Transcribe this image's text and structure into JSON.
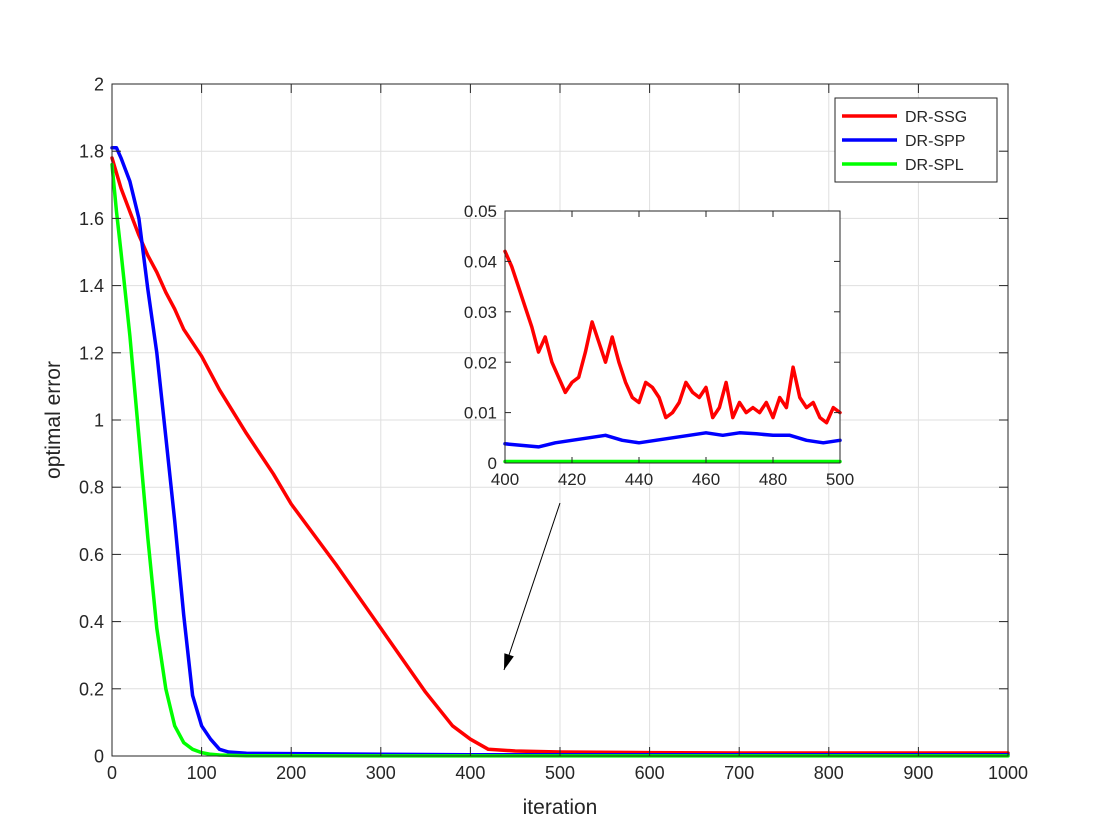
{
  "chart_data": [
    {
      "type": "line",
      "xlabel": "iteration",
      "ylabel": "optimal error",
      "xlim": [
        0,
        1000
      ],
      "ylim": [
        0,
        2
      ],
      "xticks": [
        0,
        100,
        200,
        300,
        400,
        500,
        600,
        700,
        800,
        900,
        1000
      ],
      "yticks": [
        0,
        0.2,
        0.4,
        0.6,
        0.8,
        1,
        1.2,
        1.4,
        1.6,
        1.8,
        2
      ],
      "xtick_labels": [
        "0",
        "100",
        "200",
        "300",
        "400",
        "500",
        "600",
        "700",
        "800",
        "900",
        "1000"
      ],
      "ytick_labels": [
        "0",
        "0.2",
        "0.4",
        "0.6",
        "0.8",
        "1",
        "1.2",
        "1.4",
        "1.6",
        "1.8",
        "2"
      ],
      "grid": true,
      "legend_position": "top-right",
      "series": [
        {
          "name": "DR-SSG",
          "color": "#ff0000",
          "x": [
            0,
            10,
            20,
            30,
            40,
            50,
            60,
            70,
            80,
            100,
            120,
            150,
            180,
            200,
            250,
            300,
            350,
            380,
            400,
            420,
            450,
            500,
            600,
            700,
            800,
            900,
            1000
          ],
          "y": [
            1.78,
            1.69,
            1.62,
            1.55,
            1.49,
            1.44,
            1.38,
            1.33,
            1.27,
            1.19,
            1.09,
            0.96,
            0.84,
            0.75,
            0.57,
            0.38,
            0.19,
            0.09,
            0.05,
            0.02,
            0.015,
            0.012,
            0.01,
            0.009,
            0.009,
            0.009,
            0.009
          ]
        },
        {
          "name": "DR-SPP",
          "color": "#0000ff",
          "x": [
            0,
            5,
            10,
            20,
            30,
            40,
            50,
            60,
            70,
            80,
            90,
            100,
            110,
            120,
            130,
            140,
            150,
            200,
            300,
            400,
            500,
            600,
            700,
            800,
            900,
            1000
          ],
          "y": [
            1.81,
            1.81,
            1.78,
            1.71,
            1.6,
            1.39,
            1.2,
            0.95,
            0.7,
            0.42,
            0.18,
            0.09,
            0.05,
            0.02,
            0.012,
            0.01,
            0.008,
            0.007,
            0.005,
            0.004,
            0.004,
            0.004,
            0.004,
            0.004,
            0.004,
            0.004
          ]
        },
        {
          "name": "DR-SPL",
          "color": "#00ff00",
          "x": [
            0,
            5,
            10,
            20,
            30,
            40,
            50,
            60,
            70,
            80,
            90,
            100,
            110,
            120,
            150,
            200,
            300,
            400,
            500,
            600,
            700,
            800,
            900,
            1000
          ],
          "y": [
            1.76,
            1.62,
            1.5,
            1.25,
            0.95,
            0.65,
            0.38,
            0.2,
            0.09,
            0.04,
            0.02,
            0.01,
            0.005,
            0.003,
            0.001,
            0.0005,
            0.0003,
            0.0003,
            0.0003,
            0.0003,
            0.0003,
            0.0003,
            0.0003,
            0.0003
          ]
        }
      ]
    },
    {
      "type": "line",
      "xlim": [
        400,
        500
      ],
      "ylim": [
        0,
        0.05
      ],
      "xticks": [
        400,
        420,
        440,
        460,
        480,
        500
      ],
      "yticks": [
        0,
        0.01,
        0.02,
        0.03,
        0.04,
        0.05
      ],
      "xtick_labels": [
        "400",
        "420",
        "440",
        "460",
        "480",
        "500"
      ],
      "ytick_labels": [
        "0",
        "0.01",
        "0.02",
        "0.03",
        "0.04",
        "0.05"
      ],
      "grid": false,
      "series": [
        {
          "color": "#ff0000",
          "x": [
            400,
            402,
            404,
            406,
            408,
            410,
            412,
            414,
            416,
            418,
            420,
            422,
            424,
            426,
            428,
            430,
            432,
            434,
            436,
            438,
            440,
            442,
            444,
            446,
            448,
            450,
            452,
            454,
            456,
            458,
            460,
            462,
            464,
            466,
            468,
            470,
            472,
            474,
            476,
            478,
            480,
            482,
            484,
            486,
            488,
            490,
            492,
            494,
            496,
            498,
            500
          ],
          "y": [
            0.042,
            0.039,
            0.035,
            0.031,
            0.027,
            0.022,
            0.025,
            0.02,
            0.017,
            0.014,
            0.016,
            0.017,
            0.022,
            0.028,
            0.024,
            0.02,
            0.025,
            0.02,
            0.016,
            0.013,
            0.012,
            0.016,
            0.015,
            0.013,
            0.009,
            0.01,
            0.012,
            0.016,
            0.014,
            0.013,
            0.015,
            0.009,
            0.011,
            0.016,
            0.009,
            0.012,
            0.01,
            0.011,
            0.01,
            0.012,
            0.009,
            0.013,
            0.011,
            0.019,
            0.013,
            0.011,
            0.012,
            0.009,
            0.008,
            0.011,
            0.01
          ]
        },
        {
          "color": "#0000ff",
          "x": [
            400,
            405,
            410,
            415,
            420,
            425,
            430,
            435,
            440,
            445,
            450,
            455,
            460,
            465,
            470,
            475,
            480,
            485,
            490,
            495,
            500
          ],
          "y": [
            0.0038,
            0.0035,
            0.0032,
            0.004,
            0.0045,
            0.005,
            0.0055,
            0.0045,
            0.004,
            0.0045,
            0.005,
            0.0055,
            0.006,
            0.0055,
            0.006,
            0.0058,
            0.0055,
            0.0055,
            0.0045,
            0.004,
            0.0045
          ]
        },
        {
          "color": "#00ff00",
          "x": [
            400,
            425,
            450,
            475,
            500
          ],
          "y": [
            0.0003,
            0.0003,
            0.0003,
            0.0003,
            0.0003
          ]
        }
      ]
    }
  ]
}
